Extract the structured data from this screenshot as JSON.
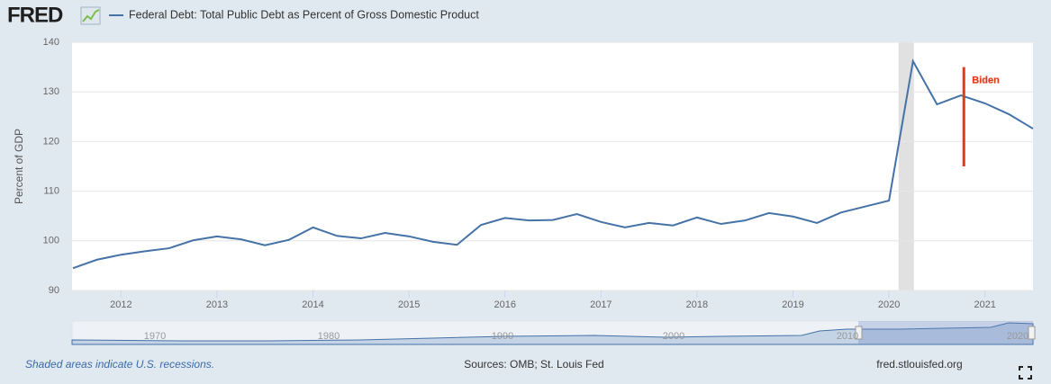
{
  "chart_data": {
    "type": "line",
    "logo": "FRED",
    "title": "Federal Debt: Total Public Debt as Percent of Gross Domestic Product",
    "ylabel": "Percent of GDP",
    "x": [
      2011.5,
      2011.75,
      2012,
      2012.25,
      2012.5,
      2012.75,
      2013,
      2013.25,
      2013.5,
      2013.75,
      2014,
      2014.25,
      2014.5,
      2014.75,
      2015,
      2015.25,
      2015.5,
      2015.75,
      2016,
      2016.25,
      2016.5,
      2016.75,
      2017,
      2017.25,
      2017.5,
      2017.75,
      2018,
      2018.25,
      2018.5,
      2018.75,
      2019,
      2019.25,
      2019.5,
      2019.75,
      2020,
      2020.25,
      2020.5,
      2020.75,
      2021,
      2021.25,
      2021.5
    ],
    "series": [
      {
        "name": "Federal Debt: Total Public Debt as Percent of Gross Domestic Product",
        "color": "#4572a7",
        "values": [
          94.5,
          96.2,
          97.2,
          97.9,
          98.5,
          100.1,
          100.9,
          100.3,
          99.1,
          100.2,
          102.7,
          101.0,
          100.5,
          101.6,
          100.9,
          99.8,
          99.2,
          103.2,
          104.6,
          104.1,
          104.2,
          105.4,
          103.8,
          102.7,
          103.6,
          103.1,
          104.7,
          103.4,
          104.1,
          105.6,
          104.9,
          103.6,
          105.7,
          106.9,
          108.1,
          136.2,
          127.5,
          129.3,
          127.7,
          125.5,
          122.6
        ]
      }
    ],
    "xlim": [
      2011.49,
      2021.5
    ],
    "xticks": [
      2012,
      2013,
      2014,
      2015,
      2016,
      2017,
      2018,
      2019,
      2020,
      2021
    ],
    "ylim": [
      90,
      140
    ],
    "yticks": [
      90,
      100,
      110,
      120,
      130,
      140
    ],
    "grid": true,
    "recessions": [
      {
        "start": 2020.1,
        "end": 2020.26,
        "color": "#e1e1e1"
      }
    ],
    "annotation": {
      "text": "Biden",
      "x": 2020.78,
      "y_top": 135,
      "y_bottom": 115,
      "color": "#e03a1e"
    },
    "navigator": {
      "labels": [
        "1970",
        "1980",
        "1990",
        "2000",
        "2010",
        "2020"
      ]
    },
    "footer": {
      "note": "Shaded areas indicate U.S. recessions.",
      "sources": "Sources: OMB; St. Louis Fed",
      "site": "fred.stlouisfed.org"
    }
  }
}
